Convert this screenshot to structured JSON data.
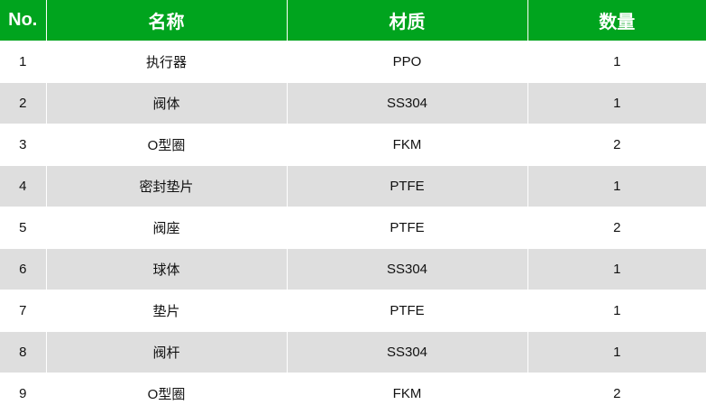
{
  "colors": {
    "header_bg": "#00a41e",
    "stripe": "#dedede"
  },
  "headers": [
    "No.",
    "名称",
    "材质",
    "数量"
  ],
  "rows": [
    [
      "1",
      "执行器",
      "PPO",
      "1"
    ],
    [
      "2",
      "阀体",
      "SS304",
      "1"
    ],
    [
      "3",
      "O型圈",
      "FKM",
      "2"
    ],
    [
      "4",
      "密封垫片",
      "PTFE",
      "1"
    ],
    [
      "5",
      "阀座",
      "PTFE",
      "2"
    ],
    [
      "6",
      "球体",
      "SS304",
      "1"
    ],
    [
      "7",
      "垫片",
      "PTFE",
      "1"
    ],
    [
      "8",
      "阀杆",
      "SS304",
      "1"
    ],
    [
      "9",
      "O型圈",
      "FKM",
      "2"
    ]
  ]
}
